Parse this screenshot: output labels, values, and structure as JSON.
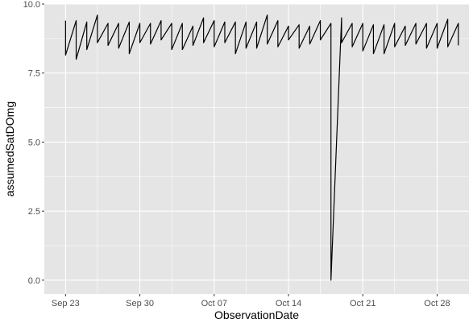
{
  "chart_data": {
    "type": "line",
    "title": "",
    "xlabel": "ObservationDate",
    "ylabel": "assumedSatDOmg",
    "xlim": [
      "2023-09-21",
      "2023-10-31"
    ],
    "ylim": [
      -0.5,
      10
    ],
    "x_ticks": [
      {
        "date": "2023-09-23",
        "label": "Sep 23"
      },
      {
        "date": "2023-09-30",
        "label": "Sep 30"
      },
      {
        "date": "2023-10-07",
        "label": "Oct 07"
      },
      {
        "date": "2023-10-14",
        "label": "Oct 14"
      },
      {
        "date": "2023-10-21",
        "label": "Oct 21"
      },
      {
        "date": "2023-10-28",
        "label": "Oct 28"
      }
    ],
    "y_ticks": [
      {
        "value": 0,
        "label": "0.0"
      },
      {
        "value": 2.5,
        "label": "2.5"
      },
      {
        "value": 5,
        "label": "5.0"
      },
      {
        "value": 7.5,
        "label": "7.5"
      },
      {
        "value": 10,
        "label": "10.0"
      }
    ],
    "grid": true,
    "legend": "none",
    "background_color": "#e5e5e5",
    "grid_color": "#ffffff",
    "line_color": "#000000",
    "series": [
      {
        "x": [
          "2023-09-23",
          "2023-09-23",
          "2023-09-24",
          "2023-09-24",
          "2023-09-25",
          "2023-09-25",
          "2023-09-26",
          "2023-09-26",
          "2023-09-27",
          "2023-09-27",
          "2023-09-28",
          "2023-09-28",
          "2023-09-29",
          "2023-09-29",
          "2023-09-30",
          "2023-09-30",
          "2023-10-01",
          "2023-10-01",
          "2023-10-02",
          "2023-10-02",
          "2023-10-03",
          "2023-10-03",
          "2023-10-04",
          "2023-10-04",
          "2023-10-05",
          "2023-10-05",
          "2023-10-06",
          "2023-10-06",
          "2023-10-07",
          "2023-10-07",
          "2023-10-08",
          "2023-10-08",
          "2023-10-09",
          "2023-10-09",
          "2023-10-10",
          "2023-10-10",
          "2023-10-11",
          "2023-10-11",
          "2023-10-12",
          "2023-10-12",
          "2023-10-13",
          "2023-10-13",
          "2023-10-14",
          "2023-10-14",
          "2023-10-15",
          "2023-10-15",
          "2023-10-16",
          "2023-10-16",
          "2023-10-17",
          "2023-10-17",
          "2023-10-18",
          "2023-10-18",
          "2023-10-19",
          "2023-10-19",
          "2023-10-20",
          "2023-10-20",
          "2023-10-21",
          "2023-10-21",
          "2023-10-22",
          "2023-10-22",
          "2023-10-23",
          "2023-10-23",
          "2023-10-24",
          "2023-10-24",
          "2023-10-25",
          "2023-10-25",
          "2023-10-26",
          "2023-10-26",
          "2023-10-27",
          "2023-10-27",
          "2023-10-28",
          "2023-10-28",
          "2023-10-29",
          "2023-10-29",
          "2023-10-30",
          "2023-10-30"
        ],
        "y": [
          9.4,
          8.15,
          9.4,
          8.0,
          9.35,
          8.35,
          9.6,
          8.6,
          9.3,
          8.5,
          9.3,
          8.4,
          9.35,
          8.2,
          9.3,
          8.6,
          9.3,
          8.55,
          9.4,
          8.7,
          9.3,
          8.35,
          9.3,
          8.35,
          9.2,
          8.5,
          9.5,
          8.6,
          9.4,
          8.45,
          9.35,
          8.6,
          9.35,
          8.2,
          9.35,
          8.4,
          9.35,
          8.4,
          9.6,
          8.55,
          9.4,
          8.45,
          9.2,
          8.7,
          9.25,
          8.4,
          9.2,
          8.55,
          9.4,
          8.7,
          9.3,
          0.0,
          9.5,
          8.6,
          9.3,
          8.45,
          9.3,
          8.3,
          9.25,
          8.2,
          9.25,
          8.2,
          9.3,
          8.45,
          9.2,
          8.5,
          9.3,
          8.55,
          9.3,
          8.4,
          9.3,
          8.4,
          9.45,
          8.45,
          9.3,
          8.5
        ]
      }
    ]
  }
}
